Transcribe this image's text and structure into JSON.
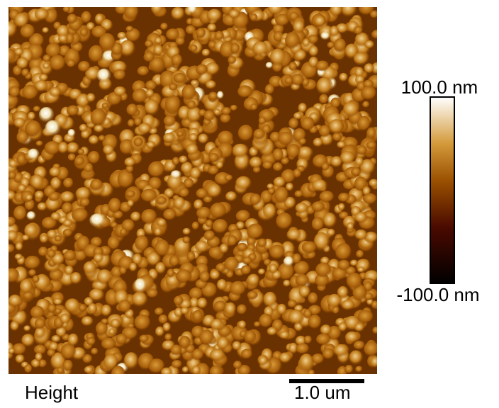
{
  "image": {
    "caption": "Height"
  },
  "colorbar": {
    "max_label": "100.0 nm",
    "min_label": "-100.0 nm"
  },
  "scale_bar": {
    "label": "1.0 um"
  }
}
